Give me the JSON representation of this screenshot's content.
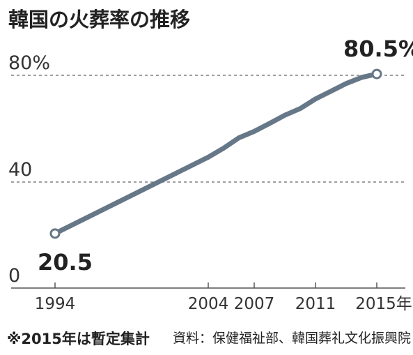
{
  "chart_data": {
    "type": "line",
    "title": "韓国の火葬率の推移",
    "xlabel": "",
    "ylabel": "",
    "ylim": [
      0,
      80
    ],
    "xlim": [
      1994,
      2015
    ],
    "y_ticks": [
      "0",
      "40",
      "80%"
    ],
    "x_ticks": [
      "1994",
      "2004",
      "2007",
      "2011",
      "2015年"
    ],
    "x_tick_values": [
      1994,
      2004,
      2007,
      2011,
      2015
    ],
    "grid": true,
    "series": [
      {
        "x": [
          1994,
          2004,
          2005,
          2006,
          2007,
          2008,
          2009,
          2010,
          2011,
          2012,
          2013,
          2014,
          2015
        ],
        "values": [
          20.5,
          49.2,
          52.6,
          56.5,
          58.9,
          61.9,
          65.0,
          67.5,
          71.1,
          74.0,
          76.9,
          79.2,
          80.5
        ],
        "color": "#667788"
      }
    ],
    "labels": {
      "first": "20.5",
      "last": "80.5%"
    },
    "note": "※2015年は暫定集計",
    "source": "資料：保健福祉部、韓国葬礼文化振興院"
  }
}
